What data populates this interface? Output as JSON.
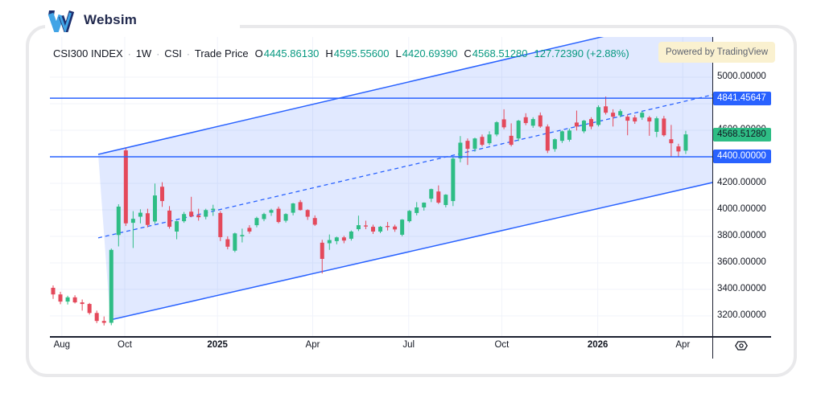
{
  "page": {
    "brand": {
      "name": "Websim"
    },
    "badge": {
      "text": "Powered by TradingView"
    }
  },
  "chart_data": {
    "type": "candlestick",
    "title": "CSI300 INDEX Weekly Chart",
    "legend": {
      "symbol": "CSI300 INDEX",
      "separator": "·",
      "interval": "1W",
      "exchange": "CSI",
      "price_type": "Trade Price",
      "ohlc": [
        {
          "label": "O",
          "value": "4445.86130"
        },
        {
          "label": "H",
          "value": "4595.55600"
        },
        {
          "label": "L",
          "value": "4420.69390"
        },
        {
          "label": "C",
          "value": "4568.51280"
        }
      ],
      "change": "127.72390 (+2.88%)"
    },
    "colors": {
      "up": "#2EBD85",
      "down": "#E4495B",
      "line": "#2962FF",
      "grid": "#F0F3FA",
      "axis_text": "#131722",
      "legend_green": "#089981",
      "label_text_on_blue": "#FFFFFF",
      "label_text_on_green": "#131722"
    },
    "y_axis": {
      "range_top": 5303,
      "range_bottom": 3048,
      "ticks": [
        {
          "price": 5000,
          "label": "5000.00000"
        },
        {
          "price": 4800,
          "label": "4800.00000"
        },
        {
          "price": 4600,
          "label": "4600.00000"
        },
        {
          "price": 4400,
          "label": "4400.00000"
        },
        {
          "price": 4200,
          "label": "4200.00000"
        },
        {
          "price": 4000,
          "label": "4000.00000"
        },
        {
          "price": 3800,
          "label": "3800.00000"
        },
        {
          "price": 3600,
          "label": "3600.00000"
        },
        {
          "price": 3400,
          "label": "3400.00000"
        },
        {
          "price": 3200,
          "label": "3200.00000"
        }
      ]
    },
    "x_axis": {
      "offset": 4,
      "spacing": 9.034,
      "ticks": [
        {
          "label": "Aug",
          "i": 1.2,
          "year": false
        },
        {
          "label": "Oct",
          "i": 9.85,
          "year": false
        },
        {
          "label": "2025",
          "i": 22.6,
          "year": true
        },
        {
          "label": "Apr",
          "i": 35.7,
          "year": false
        },
        {
          "label": "Jul",
          "i": 48.9,
          "year": false
        },
        {
          "label": "Oct",
          "i": 61.7,
          "year": false
        },
        {
          "label": "2026",
          "i": 74.9,
          "year": true
        },
        {
          "label": "Apr",
          "i": 86.6,
          "year": false
        }
      ]
    },
    "price_lines": [
      {
        "price": 4841.45647,
        "label": "4841.45647"
      },
      {
        "price": 4400.0,
        "label": "4400.00000"
      }
    ],
    "last_price": {
      "price": 4568.5128,
      "label": "4568.51280"
    },
    "channel": {
      "color": "#2962FF",
      "fill_opacity": 0.14,
      "upper": {
        "i1": 6.2,
        "p1": 4418,
        "i2": 90.7,
        "p2": 5499
      },
      "median": {
        "i1": 6.2,
        "p1": 3788,
        "i2": 90.7,
        "p2": 4867
      },
      "lower": {
        "i1": 7.86,
        "p1": 3170,
        "i2": 90.7,
        "p2": 4206
      }
    },
    "ohlc_order": "open,high,low,close",
    "candles": [
      [
        3412,
        3430,
        3328,
        3362
      ],
      [
        3362,
        3382,
        3288,
        3308
      ],
      [
        3308,
        3352,
        3286,
        3340
      ],
      [
        3340,
        3356,
        3294,
        3302
      ],
      [
        3302,
        3324,
        3240,
        3290
      ],
      [
        3290,
        3298,
        3210,
        3222
      ],
      [
        3222,
        3240,
        3146,
        3162
      ],
      [
        3162,
        3196,
        3128,
        3148
      ],
      [
        3148,
        3708,
        3130,
        3698
      ],
      [
        3810,
        4042,
        3724,
        4024
      ],
      [
        4448,
        4464,
        3878,
        3898
      ],
      [
        3902,
        3990,
        3712,
        3932
      ],
      [
        3948,
        4004,
        3898,
        3978
      ],
      [
        3974,
        4008,
        3868,
        3886
      ],
      [
        3912,
        4198,
        3894,
        4108
      ],
      [
        4174,
        4208,
        4022,
        4066
      ],
      [
        3994,
        4028,
        3858,
        3872
      ],
      [
        3836,
        3918,
        3778,
        3914
      ],
      [
        3914,
        3984,
        3902,
        3968
      ],
      [
        3986,
        4098,
        3944,
        3950
      ],
      [
        3958,
        4008,
        3918,
        3944
      ],
      [
        3948,
        4008,
        3928,
        3998
      ],
      [
        3998,
        4038,
        3954,
        4008
      ],
      [
        3976,
        3990,
        3764,
        3794
      ],
      [
        3778,
        3800,
        3702,
        3722
      ],
      [
        3692,
        3828,
        3680,
        3822
      ],
      [
        3800,
        3858,
        3754,
        3810
      ],
      [
        3864,
        3884,
        3820,
        3836
      ],
      [
        3884,
        3948,
        3868,
        3938
      ],
      [
        3930,
        3978,
        3914,
        3968
      ],
      [
        3978,
        4008,
        3954,
        3998
      ],
      [
        4008,
        4024,
        3898,
        3908
      ],
      [
        3918,
        3974,
        3904,
        3968
      ],
      [
        3978,
        4052,
        3958,
        4048
      ],
      [
        4058,
        4074,
        3994,
        3998
      ],
      [
        3998,
        4004,
        3924,
        3948
      ],
      [
        3938,
        3958,
        3878,
        3888
      ],
      [
        3752,
        3774,
        3520,
        3630
      ],
      [
        3748,
        3814,
        3698,
        3772
      ],
      [
        3764,
        3798,
        3740,
        3792
      ],
      [
        3792,
        3804,
        3748,
        3768
      ],
      [
        3782,
        3844,
        3768,
        3836
      ],
      [
        3854,
        3956,
        3840,
        3884
      ],
      [
        3882,
        3918,
        3854,
        3874
      ],
      [
        3872,
        3888,
        3818,
        3836
      ],
      [
        3836,
        3878,
        3824,
        3872
      ],
      [
        3878,
        3908,
        3844,
        3870
      ],
      [
        3874,
        3888,
        3834,
        3852
      ],
      [
        3812,
        3930,
        3800,
        3926
      ],
      [
        3914,
        3998,
        3904,
        3992
      ],
      [
        3976,
        4058,
        3958,
        4018
      ],
      [
        4018,
        4056,
        3994,
        4054
      ],
      [
        4084,
        4160,
        4058,
        4156
      ],
      [
        4138,
        4184,
        4044,
        4054
      ],
      [
        4036,
        4118,
        4018,
        4114
      ],
      [
        4066,
        4396,
        4028,
        4386
      ],
      [
        4388,
        4556,
        4358,
        4506
      ],
      [
        4520,
        4538,
        4338,
        4460
      ],
      [
        4460,
        4544,
        4438,
        4538
      ],
      [
        4550,
        4568,
        4478,
        4490
      ],
      [
        4502,
        4592,
        4488,
        4568
      ],
      [
        4568,
        4668,
        4554,
        4660
      ],
      [
        4682,
        4758,
        4608,
        4622
      ],
      [
        4558,
        4652,
        4478,
        4490
      ],
      [
        4538,
        4678,
        4518,
        4672
      ],
      [
        4698,
        4728,
        4638,
        4654
      ],
      [
        4634,
        4698,
        4618,
        4684
      ],
      [
        4712,
        4734,
        4618,
        4628
      ],
      [
        4628,
        4644,
        4428,
        4446
      ],
      [
        4458,
        4538,
        4438,
        4532
      ],
      [
        4520,
        4598,
        4504,
        4592
      ],
      [
        4528,
        4612,
        4514,
        4598
      ],
      [
        4658,
        4748,
        4598,
        4628
      ],
      [
        4592,
        4678,
        4578,
        4672
      ],
      [
        4684,
        4698,
        4608,
        4628
      ],
      [
        4640,
        4788,
        4628,
        4774
      ],
      [
        4780,
        4854,
        4718,
        4732
      ],
      [
        4732,
        4758,
        4628,
        4702
      ],
      [
        4712,
        4758,
        4698,
        4744
      ],
      [
        4702,
        4718,
        4562,
        4672
      ],
      [
        4696,
        4714,
        4648,
        4666
      ],
      [
        4696,
        4744,
        4678,
        4732
      ],
      [
        4696,
        4708,
        4558,
        4666
      ],
      [
        4588,
        4704,
        4548,
        4690
      ],
      [
        4688,
        4708,
        4552,
        4562
      ],
      [
        4532,
        4640,
        4398,
        4502
      ],
      [
        4478,
        4498,
        4398,
        4440
      ],
      [
        4445.86,
        4595.56,
        4420.69,
        4568.51
      ]
    ]
  }
}
